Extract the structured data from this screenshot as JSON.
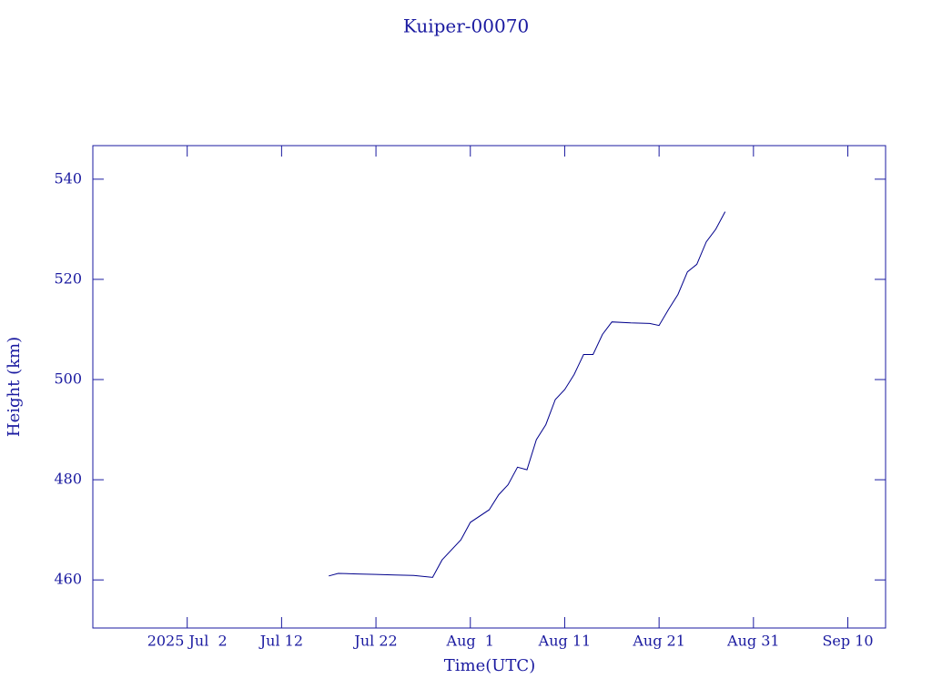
{
  "chart_data": {
    "type": "line",
    "title": "Kuiper-00070",
    "x_label": "Time(UTC)",
    "y_label": "Height (km)",
    "xlim": [
      "2025-06-22",
      "2025-09-14"
    ],
    "xticks": [
      {
        "value": "2025-07-02",
        "label": "2025 Jul  2"
      },
      {
        "value": "2025-07-12",
        "label": "Jul 12"
      },
      {
        "value": "2025-07-22",
        "label": "Jul 22"
      },
      {
        "value": "2025-08-01",
        "label": "Aug  1"
      },
      {
        "value": "2025-08-11",
        "label": "Aug 11"
      },
      {
        "value": "2025-08-21",
        "label": "Aug 21"
      },
      {
        "value": "2025-08-31",
        "label": "Aug 31"
      },
      {
        "value": "2025-09-10",
        "label": "Sep 10"
      }
    ],
    "ylim": [
      450.4,
      546.7
    ],
    "yticks": [
      460,
      480,
      500,
      520,
      540
    ],
    "series": [
      {
        "color": "#00008b",
        "x": [
          "2025-07-17",
          "2025-07-18",
          "2025-07-20",
          "2025-07-22",
          "2025-07-24",
          "2025-07-26",
          "2025-07-28",
          "2025-07-29",
          "2025-07-31",
          "2025-08-01",
          "2025-08-03",
          "2025-08-04",
          "2025-08-05",
          "2025-08-06",
          "2025-08-07",
          "2025-08-08",
          "2025-08-09",
          "2025-08-10",
          "2025-08-11",
          "2025-08-12",
          "2025-08-13",
          "2025-08-14",
          "2025-08-15",
          "2025-08-16",
          "2025-08-18",
          "2025-08-20",
          "2025-08-21",
          "2025-08-22",
          "2025-08-23",
          "2025-08-24",
          "2025-08-25",
          "2025-08-26",
          "2025-08-27",
          "2025-08-28"
        ],
        "values": [
          460.8,
          461.3,
          461.2,
          461.1,
          461.0,
          460.9,
          460.5,
          464,
          468,
          471.5,
          474,
          477,
          479,
          482.5,
          482,
          488,
          491,
          496,
          498,
          501,
          505,
          505,
          509,
          511.5,
          511.3,
          511.2,
          510.8,
          514,
          517,
          521.5,
          523,
          527.5,
          530,
          533.5
        ]
      }
    ]
  }
}
